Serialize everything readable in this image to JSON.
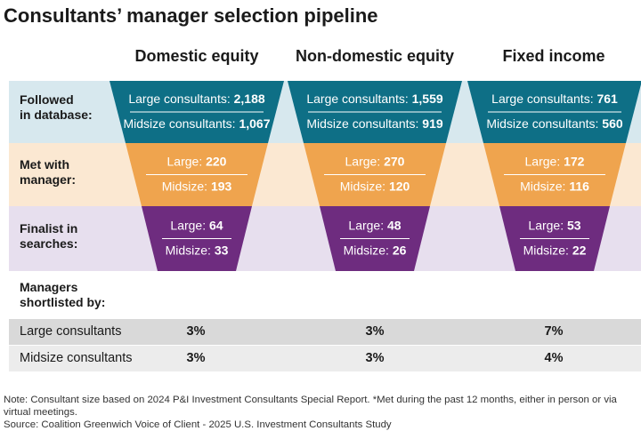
{
  "title": "Consultants’ manager selection pipeline",
  "columns": [
    "Domestic equity",
    "Non-domestic equity",
    "Fixed income"
  ],
  "stages": [
    {
      "label_lines": [
        "Followed",
        "in database:"
      ],
      "color": "#0e6f86",
      "band_color": "#d7e8ee",
      "large_prefix": "Large consultants: ",
      "mid_prefix": "Midsize consultants: "
    },
    {
      "label_lines": [
        "Met with",
        "manager:"
      ],
      "color": "#efa44e",
      "band_color": "#fbe8d2",
      "large_prefix": "Large: ",
      "mid_prefix": "Midsize: "
    },
    {
      "label_lines": [
        "Finalist in",
        "searches:"
      ],
      "color": "#6e2c7f",
      "band_color": "#e7dfee",
      "large_prefix": "Large: ",
      "mid_prefix": "Midsize: "
    }
  ],
  "chart_data": {
    "type": "table",
    "title": "Consultants’ manager selection pipeline",
    "categories": [
      "Domestic equity",
      "Non-domestic equity",
      "Fixed income"
    ],
    "series": [
      {
        "stage": "Followed in database",
        "large": [
          "2,188",
          "1,559",
          "761"
        ],
        "midsize": [
          "1,067",
          "919",
          "560"
        ]
      },
      {
        "stage": "Met with manager",
        "large": [
          "220",
          "270",
          "172"
        ],
        "midsize": [
          "193",
          "120",
          "116"
        ]
      },
      {
        "stage": "Finalist in searches",
        "large": [
          "64",
          "48",
          "53"
        ],
        "midsize": [
          "33",
          "26",
          "22"
        ]
      }
    ]
  },
  "shortlisted": {
    "title_lines": [
      "Managers",
      "shortlisted by:"
    ],
    "rows": [
      {
        "label": "Large consultants",
        "values": [
          "3%",
          "3%",
          "7%"
        ]
      },
      {
        "label": "Midsize consultants",
        "values": [
          "3%",
          "3%",
          "4%"
        ]
      }
    ]
  },
  "note": "Note: Consultant size based on 2024 P&I Investment Consultants Special Report. *Met during the past 12 months, either in person or via virtual meetings.",
  "source": "Source: Coalition Greenwich Voice of Client - 2025 U.S. Investment Consultants Study"
}
